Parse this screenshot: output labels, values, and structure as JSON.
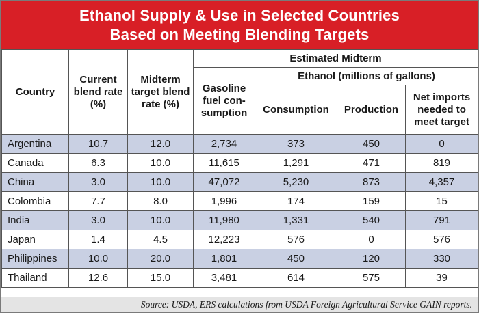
{
  "title": {
    "line1": "Ethanol Supply & Use in Selected Countries",
    "line2": "Based on Meeting Blending Targets"
  },
  "headers": {
    "country": "Country",
    "current_blend": "Current blend rate (%)",
    "midterm_target": "Midterm target blend rate (%)",
    "estimated_midterm": "Estimated Midterm",
    "gasoline": "Gasoline fuel con-sumption",
    "ethanol_group": "Ethanol (millions of gallons)",
    "consumption": "Consumption",
    "production": "Production",
    "net_imports": "Net imports needed to meet target"
  },
  "rows": [
    {
      "country": "Argentina",
      "current": "10.7",
      "target": "12.0",
      "gasoline": "2,734",
      "consumption": "373",
      "production": "450",
      "net": "0"
    },
    {
      "country": "Canada",
      "current": "6.3",
      "target": "10.0",
      "gasoline": "11,615",
      "consumption": "1,291",
      "production": "471",
      "net": "819"
    },
    {
      "country": "China",
      "current": "3.0",
      "target": "10.0",
      "gasoline": "47,072",
      "consumption": "5,230",
      "production": "873",
      "net": "4,357"
    },
    {
      "country": "Colombia",
      "current": "7.7",
      "target": "8.0",
      "gasoline": "1,996",
      "consumption": "174",
      "production": "159",
      "net": "15"
    },
    {
      "country": "India",
      "current": "3.0",
      "target": "10.0",
      "gasoline": "11,980",
      "consumption": "1,331",
      "production": "540",
      "net": "791"
    },
    {
      "country": "Japan",
      "current": "1.4",
      "target": "4.5",
      "gasoline": "12,223",
      "consumption": "576",
      "production": "0",
      "net": "576"
    },
    {
      "country": "Philippines",
      "current": "10.0",
      "target": "20.0",
      "gasoline": "1,801",
      "consumption": "450",
      "production": "120",
      "net": "330"
    },
    {
      "country": "Thailand",
      "current": "12.6",
      "target": "15.0",
      "gasoline": "3,481",
      "consumption": "614",
      "production": "575",
      "net": "39"
    }
  ],
  "source": "Source: USDA, ERS calculations from USDA Foreign Agricultural Service GAIN reports.",
  "colors": {
    "title_bg": "#d81f26",
    "shaded_row": "#c9d0e3",
    "footer_bg": "#e4e4e4"
  }
}
